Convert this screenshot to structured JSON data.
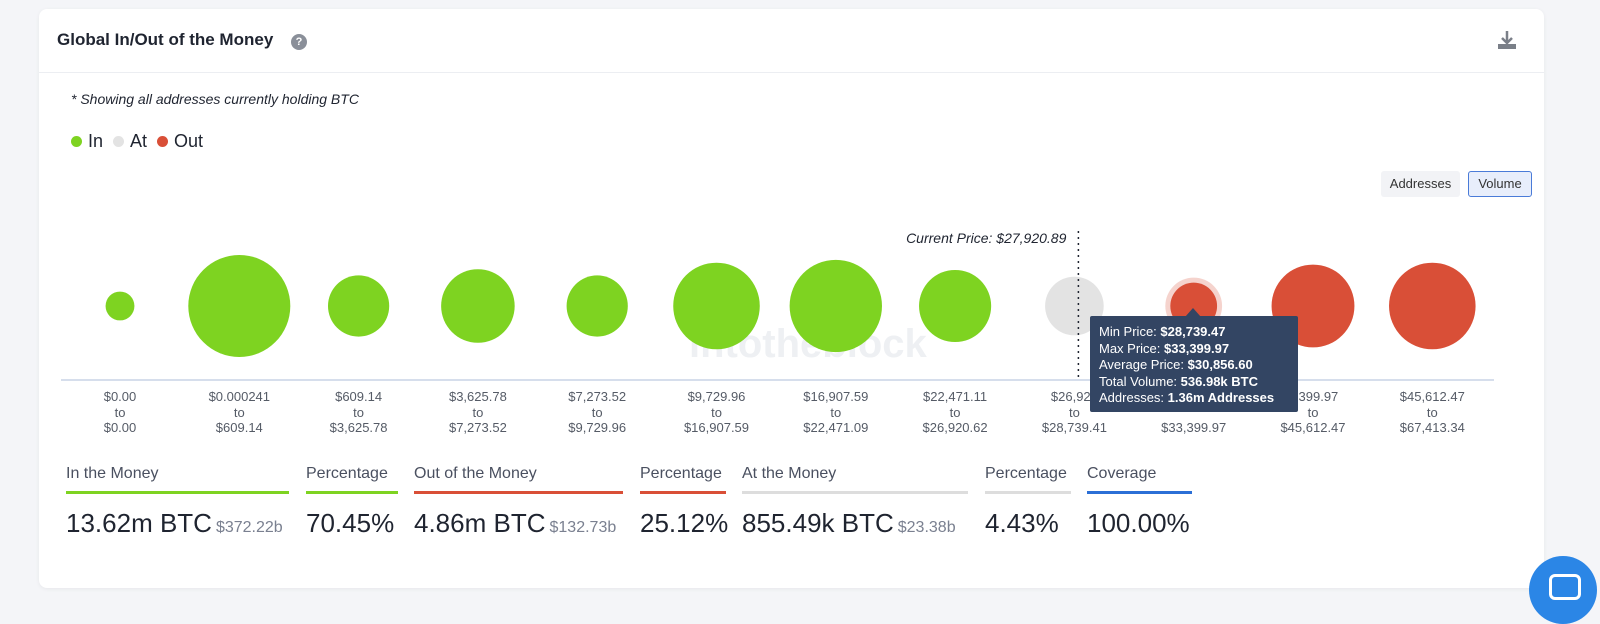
{
  "header": {
    "title": "Global In/Out of the Money",
    "help_icon": "question-circle-icon",
    "download_icon": "download-icon"
  },
  "note": "* Showing all addresses currently holding BTC",
  "legend": [
    {
      "label": "In",
      "color": "#7ed321"
    },
    {
      "label": "At",
      "color": "#e3e3e3"
    },
    {
      "label": "Out",
      "color": "#d94f37"
    }
  ],
  "toggles": {
    "addresses": "Addresses",
    "volume": "Volume",
    "selected": "Volume"
  },
  "chart_data": {
    "type": "bubble",
    "current_price_label": "Current Price: $27,920.89",
    "current_price_index": 8,
    "watermark": "intotheblock",
    "bins": [
      {
        "from": "$0.00",
        "to_word": "to",
        "to": "$0.00",
        "status": "in",
        "relative_volume": 0.08
      },
      {
        "from": "$0.000241",
        "to_word": "to",
        "to": "$609.14",
        "status": "in",
        "relative_volume": 1.0
      },
      {
        "from": "$609.14",
        "to_word": "to",
        "to": "$3,625.78",
        "status": "in",
        "relative_volume": 0.36
      },
      {
        "from": "$3,625.78",
        "to_word": "to",
        "to": "$7,273.52",
        "status": "in",
        "relative_volume": 0.52
      },
      {
        "from": "$7,273.52",
        "to_word": "to",
        "to": "$9,729.96",
        "status": "in",
        "relative_volume": 0.36
      },
      {
        "from": "$9,729.96",
        "to_word": "to",
        "to": "$16,907.59",
        "status": "in",
        "relative_volume": 0.72
      },
      {
        "from": "$16,907.59",
        "to_word": "to",
        "to": "$22,471.09",
        "status": "in",
        "relative_volume": 0.82
      },
      {
        "from": "$22,471.11",
        "to_word": "to",
        "to": "$26,920.62",
        "status": "in",
        "relative_volume": 0.5
      },
      {
        "from": "$26,920",
        "to_word": "to",
        "to": "$28,739.41",
        "status": "at",
        "relative_volume": 0.33
      },
      {
        "from": "",
        "to_word": "",
        "to": "$33,399.97",
        "status": "out",
        "relative_volume": 0.21
      },
      {
        "from": "3,399.97",
        "to_word": "to",
        "to": "$45,612.47",
        "status": "out",
        "relative_volume": 0.66
      },
      {
        "from": "$45,612.47",
        "to_word": "to",
        "to": "$67,413.34",
        "status": "out",
        "relative_volume": 0.72
      }
    ],
    "tooltip": {
      "bin_index": 9,
      "rows": [
        {
          "label": "Min Price:",
          "value": "$28,739.47"
        },
        {
          "label": "Max Price:",
          "value": "$33,399.97"
        },
        {
          "label": "Average Price:",
          "value": "$30,856.60"
        },
        {
          "label": "Total Volume:",
          "value": "536.98k BTC"
        },
        {
          "label": "Addresses:",
          "value": "1.36m Addresses"
        }
      ]
    }
  },
  "stats": [
    {
      "label": "In the Money",
      "value": "13.62m BTC",
      "sub": "$372.22b",
      "color": "#7ed321"
    },
    {
      "label": "Percentage",
      "value": "70.45%",
      "sub": "",
      "color": "#7ed321"
    },
    {
      "label": "Out of the Money",
      "value": "4.86m BTC",
      "sub": "$132.73b",
      "color": "#d94f37"
    },
    {
      "label": "Percentage",
      "value": "25.12%",
      "sub": "",
      "color": "#d94f37"
    },
    {
      "label": "At the Money",
      "value": "855.49k BTC",
      "sub": "$23.38b",
      "color": "#dddddd"
    },
    {
      "label": "Percentage",
      "value": "4.43%",
      "sub": "",
      "color": "#dddddd"
    },
    {
      "label": "Coverage",
      "value": "100.00%",
      "sub": "",
      "color": "#2b6fd6"
    }
  ],
  "chat_icon": "chat-bubble-icon"
}
